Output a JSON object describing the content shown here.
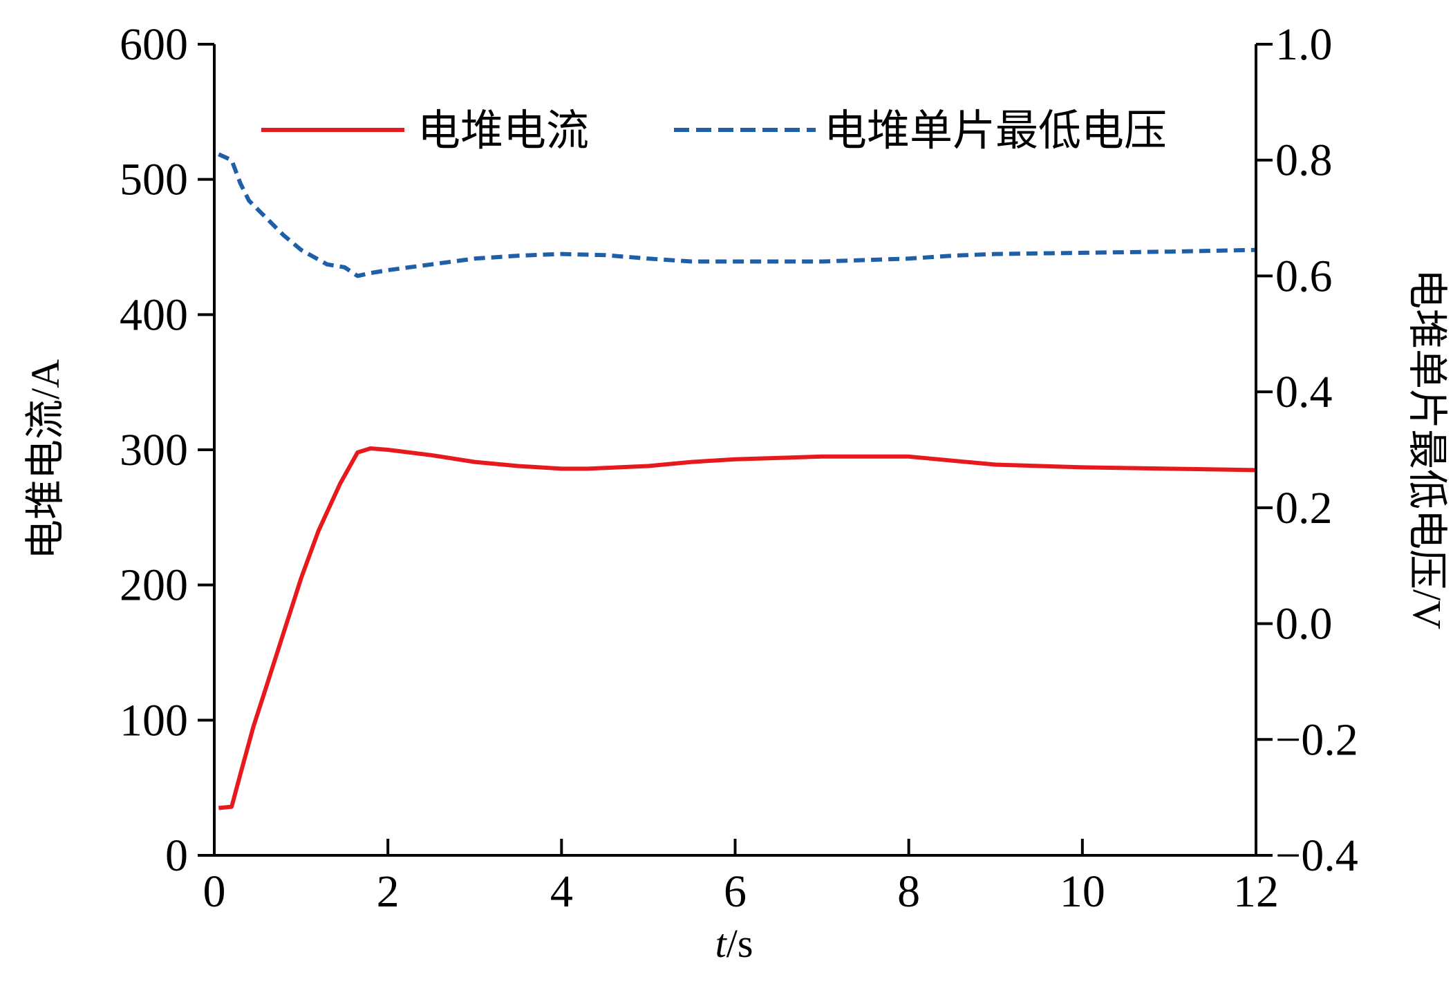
{
  "chart_data": {
    "type": "line",
    "xlabel_italic": "t",
    "xlabel_unit": "/s",
    "ylabel_left": "电堆电流/A",
    "ylabel_right": "电堆单片最低电压/V",
    "xlim": [
      0,
      12
    ],
    "ylim_left": [
      0,
      600
    ],
    "ylim_right": [
      -0.4,
      1.0
    ],
    "xticks": [
      "0",
      "2",
      "4",
      "6",
      "8",
      "10",
      "12"
    ],
    "yticks_left": [
      "0",
      "100",
      "200",
      "300",
      "400",
      "500",
      "600"
    ],
    "yticks_right": [
      "−0.4",
      "−0.2",
      "0.0",
      "0.2",
      "0.4",
      "0.6",
      "0.8",
      "1.0"
    ],
    "grid": false,
    "legend_position": "top",
    "series": [
      {
        "name": "电堆电流",
        "axis": "left",
        "color": "#e8191c",
        "style": "solid",
        "x": [
          0.05,
          0.2,
          0.3,
          0.45,
          0.6,
          0.8,
          1.0,
          1.2,
          1.45,
          1.65,
          1.8,
          2.0,
          2.5,
          3.0,
          3.5,
          4.0,
          4.3,
          5.0,
          5.5,
          6.0,
          7.0,
          8.0,
          8.5,
          9.0,
          10.0,
          11.0,
          12.0
        ],
        "y": [
          35,
          36,
          60,
          95,
          125,
          165,
          205,
          240,
          275,
          298,
          301,
          300,
          296,
          291,
          288,
          286,
          286,
          288,
          291,
          293,
          295,
          295,
          292,
          289,
          287,
          286,
          285
        ]
      },
      {
        "name": "电堆单片最低电压",
        "axis": "right",
        "color": "#1f5fa8",
        "style": "dashed",
        "x": [
          0.05,
          0.2,
          0.3,
          0.4,
          0.6,
          0.8,
          1.0,
          1.3,
          1.5,
          1.65,
          1.8,
          2.0,
          2.5,
          3.0,
          3.5,
          4.0,
          4.5,
          5.0,
          5.5,
          6.0,
          7.0,
          8.0,
          8.5,
          9.0,
          10.0,
          11.0,
          12.0
        ],
        "y": [
          0.81,
          0.8,
          0.76,
          0.73,
          0.7,
          0.67,
          0.645,
          0.62,
          0.615,
          0.6,
          0.605,
          0.61,
          0.62,
          0.63,
          0.635,
          0.638,
          0.636,
          0.63,
          0.625,
          0.625,
          0.625,
          0.63,
          0.635,
          0.638,
          0.64,
          0.642,
          0.645
        ]
      }
    ]
  }
}
